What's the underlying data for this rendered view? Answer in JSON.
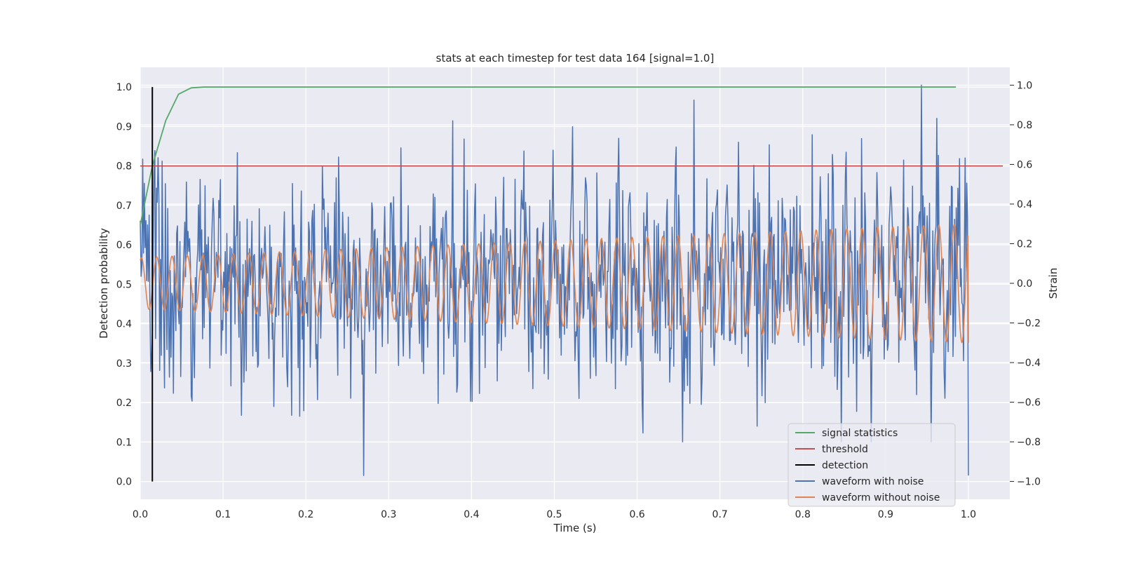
{
  "chart_data": {
    "type": "line",
    "title": "stats at each timestep for test data 164 [signal=1.0]",
    "xlabel": "Time (s)",
    "ylabel_left": "Detection probability",
    "ylabel_right": "Strain",
    "xlim": [
      0.0,
      1.05
    ],
    "ylim_left": [
      -0.045,
      1.05
    ],
    "ylim_right": [
      -1.09,
      1.09
    ],
    "x_ticks": [
      "0.0",
      "0.1",
      "0.2",
      "0.3",
      "0.4",
      "0.5",
      "0.6",
      "0.7",
      "0.8",
      "0.9",
      "1.0"
    ],
    "y_left_ticks": [
      "0.0",
      "0.1",
      "0.2",
      "0.3",
      "0.4",
      "0.5",
      "0.6",
      "0.7",
      "0.8",
      "0.9",
      "1.0"
    ],
    "y_right_ticks": [
      "−1.0",
      "−0.8",
      "−0.6",
      "−0.4",
      "−0.2",
      "0.0",
      "0.2",
      "0.4",
      "0.6",
      "0.8",
      "1.0"
    ],
    "grid": true,
    "legend_position": "lower-right",
    "threshold": 0.8,
    "detection_time": 0.0146,
    "signal_statistics": {
      "x": [
        0.0,
        0.0146,
        0.0308,
        0.0462,
        0.0615,
        0.0769,
        0.1,
        0.2,
        0.3,
        0.4,
        0.5,
        0.6,
        0.7,
        0.8,
        0.9,
        0.985
      ],
      "y": [
        0.65,
        0.8,
        0.915,
        0.982,
        0.998,
        1.0,
        1.0,
        1.0,
        1.0,
        1.0,
        1.0,
        1.0,
        1.0,
        1.0,
        1.0,
        1.0
      ]
    },
    "waveform_without_noise": {
      "axis": "right",
      "n_cycles": 54,
      "amp_start": 0.13,
      "amp_end": 0.3,
      "phase_start": 1.1,
      "end_value": -0.3
    },
    "waveform_with_noise": {
      "axis": "right",
      "n_samples": 1024,
      "noise_sigma": 0.28,
      "max_value": 1.0,
      "max_at": 0.943,
      "min_value": -0.97,
      "min_at": 0.27,
      "end_value": -0.97,
      "seed": 164
    },
    "series": [
      {
        "name": "signal statistics",
        "color": "#55a868"
      },
      {
        "name": "threshold",
        "color": "#c44e52"
      },
      {
        "name": "detection",
        "color": "#000000"
      },
      {
        "name": "waveform with noise",
        "color": "#4c72b0"
      },
      {
        "name": "waveform without noise",
        "color": "#dd8452"
      }
    ],
    "background_color": "#eaeaf2",
    "grid_color": "#ffffff"
  }
}
